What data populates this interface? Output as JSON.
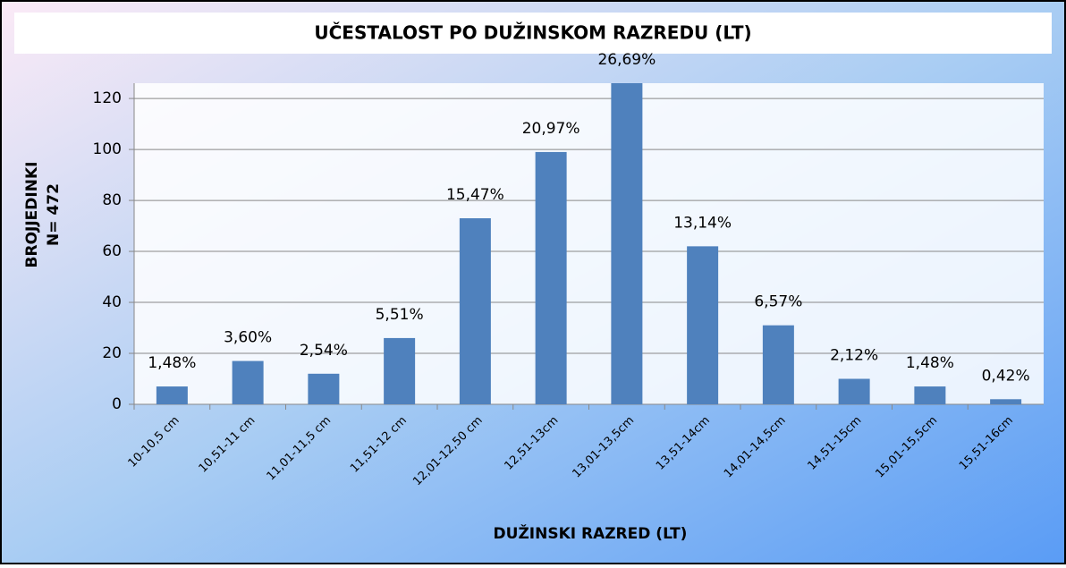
{
  "chart_data": {
    "type": "bar",
    "title": "UČESTALOST PO DUŽINSKOM RAZREDU (LT)",
    "x_label": "DUŽINSKI RAZRED (LT)",
    "y_label": [
      "BROJJEDINKI",
      "N= 472"
    ],
    "categories": [
      "10-10,5 cm",
      "10,51-11 cm",
      "11,01-11,5 cm",
      "11,51-12 cm",
      "12,01-12,50 cm",
      "12,51-13cm",
      "13,01-13,5cm",
      "13,51-14cm",
      "14,01-14,5cm",
      "14,51-15cm",
      "15,01-15,5cm",
      "15,51-16cm"
    ],
    "values": [
      7,
      17,
      12,
      26,
      73,
      99,
      126,
      62,
      31,
      10,
      7,
      2
    ],
    "value_labels": [
      "1,48%",
      "3,60%",
      "2,54%",
      "5,51%",
      "15,47%",
      "20,97%",
      "26,69%",
      "13,14%",
      "6,57%",
      "2,12%",
      "1,48%",
      "0,42%"
    ],
    "color": "#4f81bd",
    "ylim": [
      0,
      126
    ],
    "yticks": [
      0,
      20,
      40,
      60,
      80,
      100,
      120
    ],
    "grid": true
  }
}
